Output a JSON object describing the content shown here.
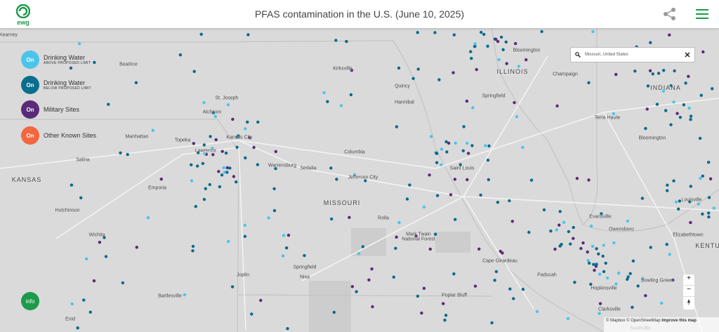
{
  "header": {
    "logo": "ewg",
    "title": "PFAS contamination in the U.S. (June 10, 2025)"
  },
  "legend": [
    {
      "button": "On",
      "label": "Drinking Water",
      "sublabel": "ABOVE PROPOSED LIMIT"
    },
    {
      "button": "On",
      "label": "Drinking Water",
      "sublabel": "BELOW PROPOSED LIMIT"
    },
    {
      "button": "On",
      "label": "Military Sites"
    },
    {
      "button": "On",
      "label": "Other Known Sites"
    }
  ],
  "info_button": "info",
  "search": {
    "value": "Missouri, United States"
  },
  "map_labels": [
    "Kearney",
    "Beatrice",
    "Kirksville",
    "Quincy",
    "Bloomington",
    "ILLINOIS",
    "Champaign",
    "INDIANA",
    "St. Joseph",
    "Atchison",
    "Hannibal",
    "Springfield",
    "Terre Haute",
    "Manhattan",
    "Topeka",
    "Kansas City",
    "Lawrence",
    "Salina",
    "Columbia",
    "Bloomington",
    "Warrensburg",
    "Sedalia",
    "Jefferson City",
    "Saint Louis",
    "KANSAS",
    "Emporia",
    "MISSOURI",
    "Hutchinson",
    "Rolla",
    "Mark Twain",
    "National Forest",
    "Evansville",
    "Louisville",
    "Owensboro",
    "Wichita",
    "Elizabethtown",
    "KENTU",
    "Cape Girardeau",
    "Joplin",
    "Springfield",
    "Nixa",
    "Paducah",
    "Hopkinsville",
    "Bowling Green",
    "Bartlesville",
    "Poplar Bluff",
    "Clarksville",
    "Enid",
    "Nashville"
  ],
  "zoom_controls": [
    "+",
    "−"
  ],
  "attribution": {
    "mapbox": "© Mapbox",
    "osm": "© OpenStreetMap",
    "improve": "Improve this map"
  }
}
